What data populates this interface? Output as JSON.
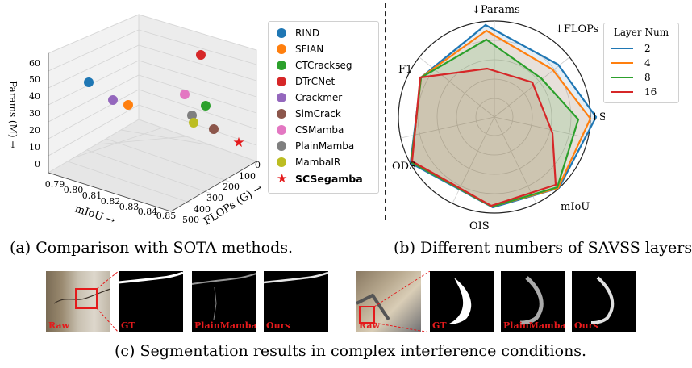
{
  "panel_a": {
    "axes": {
      "x_label": "mIoU →",
      "y_label": "FLOPs (G) →",
      "z_label": "Params (M) →",
      "x_ticks": [
        "0.79",
        "0.80",
        "0.81",
        "0.82",
        "0.83",
        "0.84",
        "0.85"
      ],
      "y_ticks": [
        "0",
        "100",
        "200",
        "300",
        "400",
        "500"
      ],
      "z_ticks": [
        "0",
        "10",
        "20",
        "30",
        "40",
        "50",
        "60"
      ]
    },
    "legend": [
      {
        "label": "RIND",
        "color": "#1f77b4",
        "marker": "dot"
      },
      {
        "label": "SFIAN",
        "color": "#ff7f0e",
        "marker": "dot"
      },
      {
        "label": "CTCrackseg",
        "color": "#2ca02c",
        "marker": "dot"
      },
      {
        "label": "DTrCNet",
        "color": "#d62728",
        "marker": "dot"
      },
      {
        "label": "Crackmer",
        "color": "#9467bd",
        "marker": "dot"
      },
      {
        "label": "SimCrack",
        "color": "#8c564b",
        "marker": "dot"
      },
      {
        "label": "CSMamba",
        "color": "#e377c2",
        "marker": "dot"
      },
      {
        "label": "PlainMamba",
        "color": "#7f7f7f",
        "marker": "dot"
      },
      {
        "label": "MambaIR",
        "color": "#bcbd22",
        "marker": "dot"
      },
      {
        "label": "SCSegamba",
        "color": "#e41a1c",
        "marker": "star"
      }
    ]
  },
  "panel_b": {
    "axes": [
      "↓Params",
      "↓FLOPs",
      "↓Size",
      "mIoU",
      "OIS",
      "ODS",
      "F1"
    ],
    "legend_title": "Layer Num",
    "series": [
      {
        "name": "2",
        "color": "#1f77b4"
      },
      {
        "name": "4",
        "color": "#ff7f0e"
      },
      {
        "name": "8",
        "color": "#2ca02c"
      },
      {
        "name": "16",
        "color": "#d62728"
      }
    ]
  },
  "captions": {
    "a": "(a) Comparison with SOTA methods.",
    "b": "(b) Different numbers of SAVSS layers.",
    "c": "(c) Segmentation results in complex interference conditions."
  },
  "panel_c": {
    "left_labels": [
      "Raw",
      "GT",
      "PlainMamba",
      "Ours"
    ],
    "right_labels": [
      "Raw",
      "GT",
      "PlainMamba",
      "Ours"
    ]
  }
}
